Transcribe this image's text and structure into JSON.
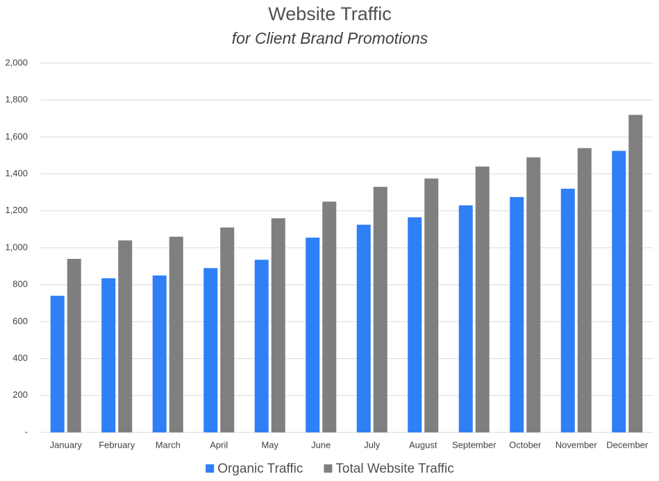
{
  "chart_data": {
    "type": "bar",
    "title": "Website Traffic",
    "subtitle": "for Client Brand Promotions",
    "categories": [
      "January",
      "February",
      "March",
      "April",
      "May",
      "June",
      "July",
      "August",
      "September",
      "October",
      "November",
      "December"
    ],
    "series": [
      {
        "name": "Organic Traffic",
        "color": "#2f7ff6",
        "values": [
          740,
          835,
          850,
          890,
          935,
          1055,
          1125,
          1165,
          1230,
          1275,
          1320,
          1525
        ]
      },
      {
        "name": "Total Website Traffic",
        "color": "#7f7f7f",
        "values": [
          940,
          1040,
          1060,
          1110,
          1160,
          1250,
          1330,
          1375,
          1440,
          1490,
          1540,
          1720
        ]
      }
    ],
    "ylim": [
      0,
      2000
    ],
    "yticks": [
      {
        "value": 0,
        "label": "-"
      },
      200,
      400,
      600,
      800,
      {
        "value": 1000,
        "label": "1,000"
      },
      {
        "value": 1200,
        "label": "1,200"
      },
      {
        "value": 1400,
        "label": "1,400"
      },
      {
        "value": 1600,
        "label": "1,600"
      },
      {
        "value": 1800,
        "label": "1,800"
      },
      {
        "value": 2000,
        "label": "2,000"
      }
    ],
    "grid": true,
    "legend": "bottom"
  }
}
